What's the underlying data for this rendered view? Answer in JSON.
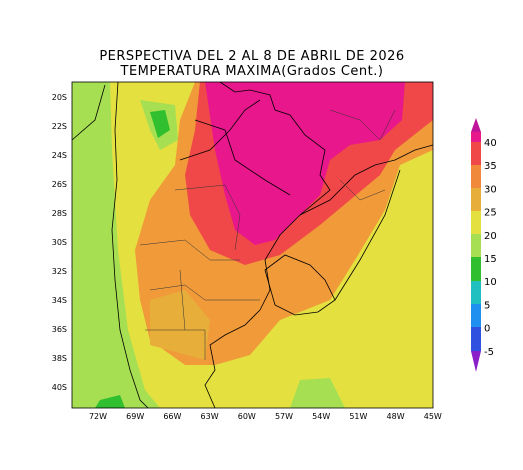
{
  "header": {
    "title": "PERSPECTIVA DEL 2 AL 8 DE ABRIL DE 2026",
    "subtitle": "TEMPERATURA MAXIMA(Grados Cent.)"
  },
  "map": {
    "lat_labels": [
      "20S",
      "22S",
      "24S",
      "26S",
      "28S",
      "30S",
      "32S",
      "34S",
      "36S",
      "38S",
      "40S"
    ],
    "lon_labels": [
      "72W",
      "69W",
      "66W",
      "63W",
      "60W",
      "57W",
      "54W",
      "51W",
      "48W",
      "45W"
    ]
  },
  "colorbar": {
    "labels": [
      40,
      35,
      30,
      25,
      20,
      15,
      10,
      5,
      0,
      -5
    ]
  }
}
